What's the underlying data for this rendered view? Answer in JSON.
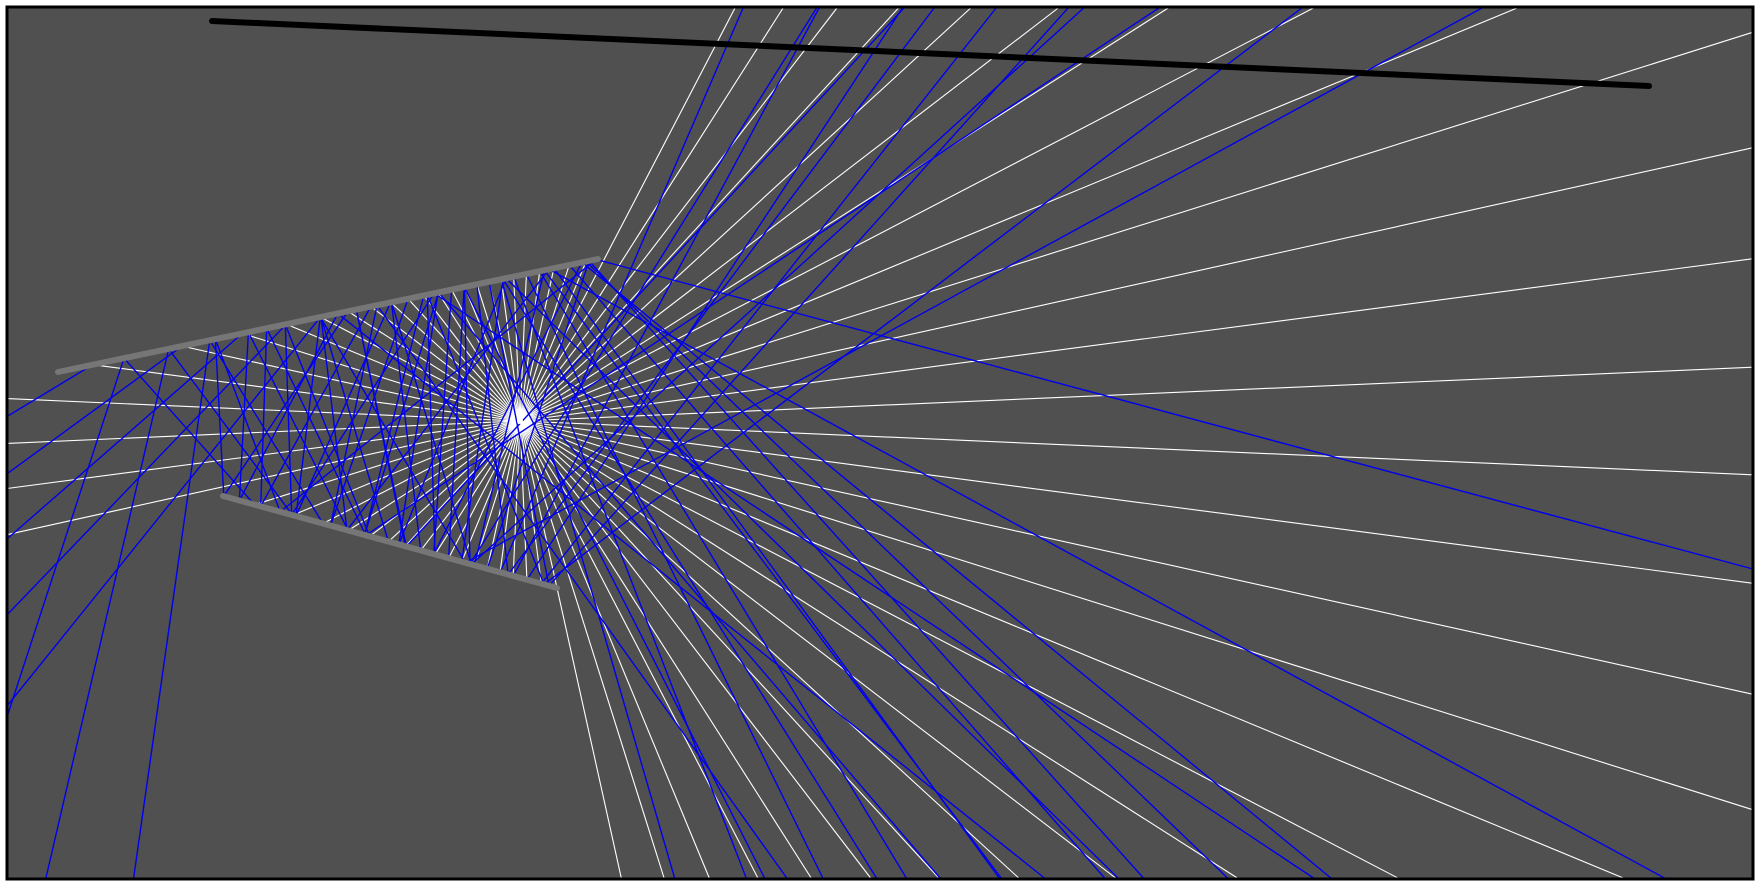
{
  "colors": {
    "background": "#505050",
    "frame": "#000000",
    "white_ray": "#ffffff",
    "blue_ray": "#0000ee",
    "upper_mirror": "#767676",
    "lower_mirror": "#767676",
    "top_screen": "#000000"
  },
  "scene": {
    "elements": [
      "light-source",
      "white-rays",
      "blue-rays",
      "upper-mirror",
      "lower-mirror",
      "top-screen"
    ]
  }
}
